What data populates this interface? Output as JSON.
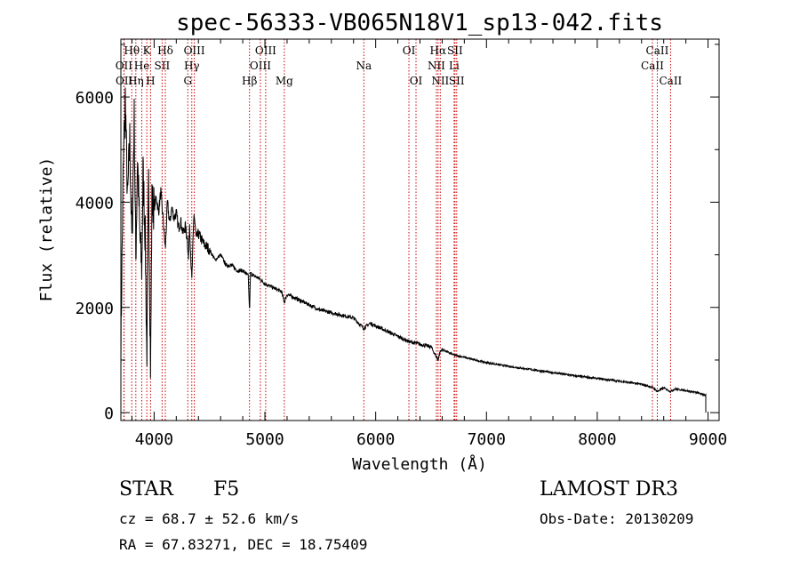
{
  "chart_data": {
    "type": "line",
    "title": "spec-56333-VB065N18V1_sp13-042.fits",
    "xlabel": "Wavelength (Å)",
    "ylabel": "Flux (relative)",
    "xlim": [
      3700,
      9100
    ],
    "ylim": [
      -150,
      7100
    ],
    "xticks": [
      4000,
      5000,
      6000,
      7000,
      8000,
      9000
    ],
    "yticks": [
      0,
      2000,
      4000,
      6000
    ],
    "x_minor_step": 200,
    "y_minor_step": 1000,
    "series": [
      {
        "name": "spectrum",
        "x": [
          3700,
          3720,
          3740,
          3760,
          3780,
          3800,
          3820,
          3835,
          3850,
          3870,
          3889,
          3900,
          3920,
          3934,
          3950,
          3968,
          3980,
          4000,
          4020,
          4040,
          4060,
          4080,
          4101,
          4120,
          4140,
          4160,
          4180,
          4200,
          4220,
          4240,
          4260,
          4280,
          4300,
          4310,
          4320,
          4340,
          4360,
          4380,
          4400,
          4450,
          4500,
          4550,
          4600,
          4650,
          4700,
          4750,
          4800,
          4850,
          4861,
          4870,
          4900,
          4950,
          5000,
          5050,
          5100,
          5150,
          5175,
          5200,
          5250,
          5300,
          5400,
          5500,
          5600,
          5700,
          5800,
          5893,
          5950,
          6000,
          6100,
          6200,
          6300,
          6400,
          6500,
          6563,
          6580,
          6600,
          6700,
          6800,
          6900,
          7000,
          7200,
          7400,
          7600,
          7800,
          8000,
          8200,
          8400,
          8500,
          8542,
          8600,
          8662,
          8700,
          8800,
          8900,
          8980
        ],
        "y": [
          1200,
          4500,
          6000,
          4000,
          5200,
          3200,
          5600,
          2900,
          4900,
          3400,
          2700,
          4600,
          3300,
          1000,
          4400,
          800,
          4000,
          3900,
          4100,
          3800,
          4200,
          3700,
          3100,
          4000,
          3600,
          3900,
          3700,
          3800,
          3500,
          3650,
          3400,
          3550,
          3300,
          2900,
          3600,
          2500,
          3800,
          3300,
          3400,
          3200,
          3100,
          2900,
          3000,
          2800,
          2800,
          2700,
          2700,
          2600,
          1900,
          2650,
          2600,
          2550,
          2450,
          2400,
          2350,
          2300,
          2100,
          2250,
          2200,
          2150,
          2050,
          1950,
          1900,
          1850,
          1800,
          1600,
          1700,
          1650,
          1550,
          1450,
          1350,
          1300,
          1250,
          1000,
          1150,
          1200,
          1100,
          1050,
          1000,
          950,
          880,
          820,
          760,
          700,
          650,
          600,
          540,
          480,
          400,
          470,
          400,
          450,
          420,
          380,
          330
        ]
      }
    ],
    "lines_top": [
      {
        "label": "Hθ",
        "x": 3798,
        "row": 1
      },
      {
        "label": "Hη",
        "x": 3835,
        "row": 3
      },
      {
        "label": "He",
        "x": 3889,
        "row": 2
      },
      {
        "label": "K",
        "x": 3934,
        "row": 1
      },
      {
        "label": "H",
        "x": 3968,
        "row": 3
      },
      {
        "label": "SII",
        "x": 4072,
        "row": 2
      },
      {
        "label": "Hδ",
        "x": 4101,
        "row": 1
      },
      {
        "label": "OII",
        "x": 3727,
        "row": 2
      },
      {
        "label": "OII",
        "x": 3729,
        "row": 3
      },
      {
        "label": "OIII",
        "x": 4363,
        "row": 1
      },
      {
        "label": "Hγ",
        "x": 4340,
        "row": 2
      },
      {
        "label": "G",
        "x": 4304,
        "row": 3
      },
      {
        "label": "Hβ",
        "x": 4861,
        "row": 3
      },
      {
        "label": "OIII",
        "x": 5007,
        "row": 1
      },
      {
        "label": "OIII",
        "x": 4959,
        "row": 2
      },
      {
        "label": "Mg",
        "x": 5175,
        "row": 3
      },
      {
        "label": "Na",
        "x": 5893,
        "row": 2
      },
      {
        "label": "OI",
        "x": 6300,
        "row": 1
      },
      {
        "label": "OI",
        "x": 6364,
        "row": 3
      },
      {
        "label": "Hα",
        "x": 6563,
        "row": 1
      },
      {
        "label": "NII",
        "x": 6548,
        "row": 2
      },
      {
        "label": "NII",
        "x": 6583,
        "row": 3
      },
      {
        "label": "SII",
        "x": 6716,
        "row": 1
      },
      {
        "label": "Li",
        "x": 6708,
        "row": 2
      },
      {
        "label": "SII",
        "x": 6731,
        "row": 3
      },
      {
        "label": "CaII",
        "x": 8542,
        "row": 1
      },
      {
        "label": "CaII",
        "x": 8498,
        "row": 2
      },
      {
        "label": "CaII",
        "x": 8662,
        "row": 3
      }
    ]
  },
  "info": {
    "class_label": "STAR",
    "subclass": "F5",
    "survey": "LAMOST DR3",
    "cz": "cz = 68.7 ± 52.6 km/s",
    "obs_date": "Obs-Date: 20130209",
    "coords": "RA =  67.83271, DEC =  18.75409"
  },
  "colors": {
    "line": "#000000",
    "marker_line": "#cc0000",
    "background": "#ffffff"
  }
}
